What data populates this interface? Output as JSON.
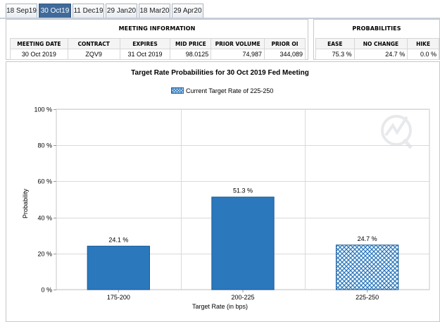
{
  "tabs": [
    {
      "label": "18 Sep19",
      "active": false
    },
    {
      "label": "30 Oct19",
      "active": true
    },
    {
      "label": "11 Dec19",
      "active": false
    },
    {
      "label": "29 Jan20",
      "active": false
    },
    {
      "label": "18 Mar20",
      "active": false
    },
    {
      "label": "29 Apr20",
      "active": false
    }
  ],
  "meeting_info": {
    "heading": "MEETING INFORMATION",
    "columns": [
      "MEETING DATE",
      "CONTRACT",
      "EXPIRES",
      "MID PRICE",
      "PRIOR VOLUME",
      "PRIOR OI"
    ],
    "row": [
      "30 Oct 2019",
      "ZQV9",
      "31 Oct 2019",
      "98.0125",
      "74,987",
      "344,089"
    ]
  },
  "probabilities": {
    "heading": "PROBABILITIES",
    "columns": [
      "EASE",
      "NO CHANGE",
      "HIKE"
    ],
    "row": [
      "75.3 %",
      "24.7 %",
      "0.0 %"
    ]
  },
  "chart_data": {
    "type": "bar",
    "title": "Target Rate Probabilities for 30 Oct 2019 Fed Meeting",
    "legend": "Current Target Rate of 225-250",
    "legend_placement": "top-center",
    "xlabel": "Target Rate (in bps)",
    "ylabel": "Probability",
    "categories": [
      "175-200",
      "200-225",
      "225-250"
    ],
    "values": [
      24.1,
      51.3,
      24.7
    ],
    "value_labels": [
      "24.1 %",
      "51.3 %",
      "24.7 %"
    ],
    "current_category": "225-250",
    "ylim": [
      0,
      100
    ],
    "yticks": [
      0,
      20,
      40,
      60,
      80,
      100
    ],
    "ytick_labels": [
      "0 %",
      "20 %",
      "40 %",
      "60 %",
      "80 %",
      "100 %"
    ],
    "grid": true,
    "colors": {
      "bar": "#2b78bd",
      "bar_border": "#1a5b96",
      "current_hatch": "#2b78bd"
    }
  }
}
